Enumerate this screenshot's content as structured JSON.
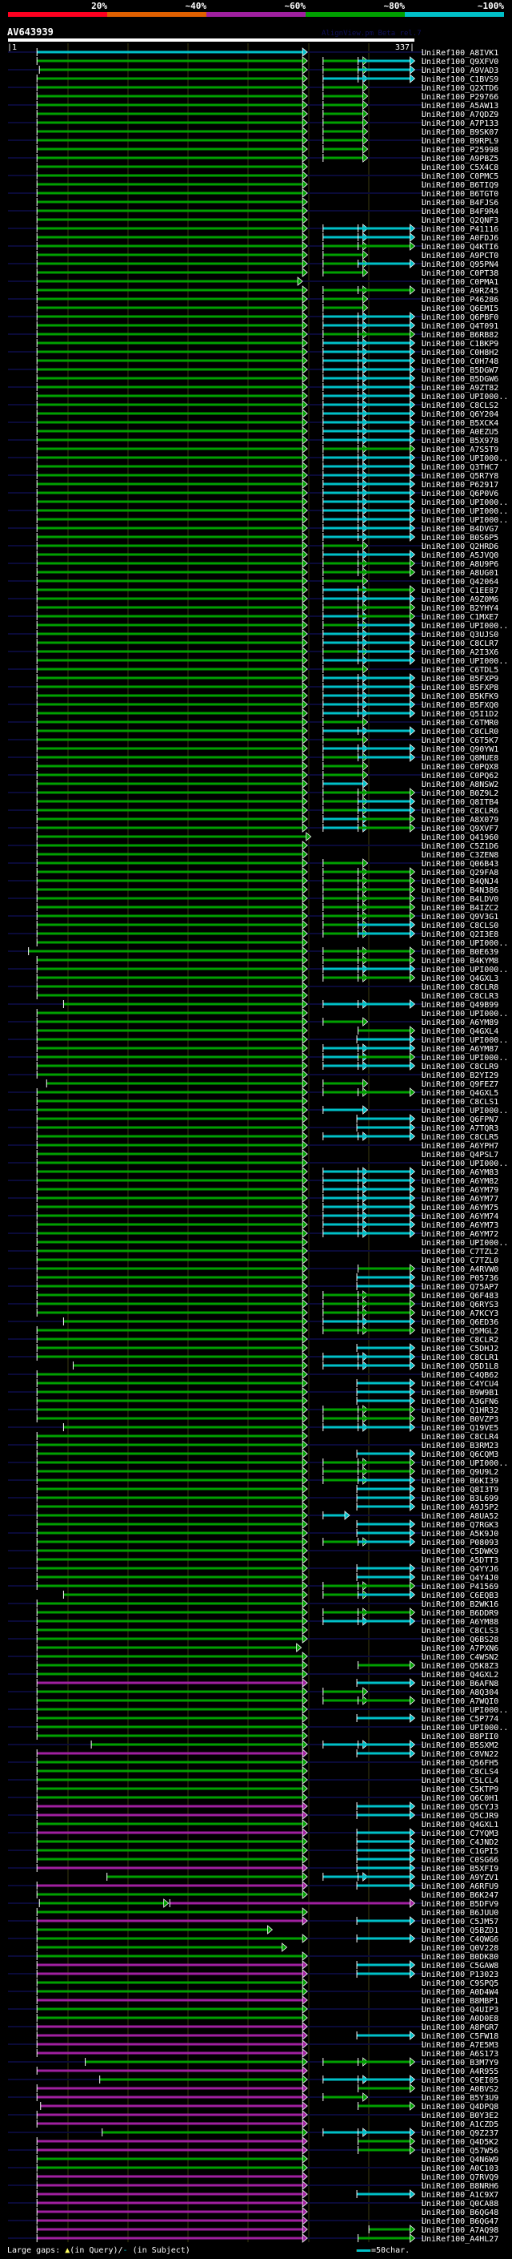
{
  "header": {
    "scale_labels": [
      "20%",
      "~40%",
      "~60%",
      "~80%",
      "~100%"
    ],
    "scale_colors": [
      "#ff0020",
      "#e06000",
      "#a020a0",
      "#00a000",
      "#00c0c8"
    ],
    "query_name": "AV643939",
    "app_name": "AlignView.pm Beta rel.7",
    "query_start": "|1",
    "query_end": "337|"
  },
  "query_length": 337,
  "colors": {
    "g": "#00a000",
    "c": "#00c0c8",
    "m": "#a020a0",
    "subject_line": "#0a0a38",
    "grid": "#3a3a10"
  },
  "main_default": [
    25,
    245
  ],
  "patterns": {
    "A": [
      [
        262,
        295,
        "g"
      ]
    ],
    "B": [
      [
        262,
        295,
        "c"
      ],
      [
        291,
        334,
        "c"
      ]
    ],
    "C": [],
    "D": [
      [
        262,
        295,
        "g"
      ],
      [
        291,
        334,
        "g"
      ]
    ],
    "E": [
      [
        262,
        295,
        "c"
      ],
      [
        291,
        334,
        "g"
      ]
    ],
    "F": [
      [
        262,
        295,
        "g"
      ],
      [
        291,
        334,
        "c"
      ]
    ],
    "G": [
      [
        262,
        295,
        "c"
      ]
    ],
    "H": [
      [
        291,
        334,
        "g"
      ]
    ],
    "I": [
      [
        290,
        334,
        "c"
      ]
    ],
    "J": [
      [
        262,
        280,
        "c"
      ]
    ],
    "K": [
      [
        300,
        334,
        "g"
      ]
    ],
    "X": [
      [
        27,
        130,
        "g"
      ],
      [
        135,
        334,
        "m"
      ]
    ]
  },
  "label_prefix": "UniRef100_",
  "hits": [
    [
      "A8IVK1",
      "c",
      "C"
    ],
    [
      "Q9XFV0",
      "g",
      "F"
    ],
    [
      "A9VAD3",
      "g",
      "F",
      27
    ],
    [
      "C1BVS9",
      "g",
      "B"
    ],
    [
      "Q2XTD6",
      "g",
      "A"
    ],
    [
      "P29766",
      "g",
      "A"
    ],
    [
      "A5AW13",
      "g",
      "A"
    ],
    [
      "A7QDZ9",
      "g",
      "A"
    ],
    [
      "A7P133",
      "g",
      "A"
    ],
    [
      "B9SK07",
      "g",
      "A"
    ],
    [
      "B9RPL9",
      "g",
      "A"
    ],
    [
      "P25998",
      "g",
      "A"
    ],
    [
      "A9PBZ5",
      "g",
      "A"
    ],
    [
      "C5X4C8",
      "g",
      "C"
    ],
    [
      "C0PMC5",
      "g",
      "C"
    ],
    [
      "B6TIQ9",
      "g",
      "C"
    ],
    [
      "B6TGT0",
      "g",
      "C"
    ],
    [
      "B4FJS6",
      "g",
      "C"
    ],
    [
      "B4F9R4",
      "g",
      "C"
    ],
    [
      "Q2QNF3",
      "g",
      "C"
    ],
    [
      "P41116",
      "g",
      "B"
    ],
    [
      "A0FDJ6",
      "g",
      "B"
    ],
    [
      "Q4KTI6",
      "g",
      "D"
    ],
    [
      "A9PCT0",
      "g",
      "A"
    ],
    [
      "Q95PN4",
      "g",
      "F"
    ],
    [
      "C0PT38",
      "g",
      "A"
    ],
    [
      "C0PMA1",
      "g",
      "C",
      null,
      241
    ],
    [
      "A9RZ45",
      "g",
      "D"
    ],
    [
      "P46286",
      "g",
      "A"
    ],
    [
      "Q6EMI5",
      "g",
      "A"
    ],
    [
      "Q6PBF0",
      "g",
      "B"
    ],
    [
      "Q4T091",
      "g",
      "B"
    ],
    [
      "B6RB82",
      "g",
      "D"
    ],
    [
      "C1BKP9",
      "g",
      "B"
    ],
    [
      "C0H8H2",
      "g",
      "B"
    ],
    [
      "C0H748",
      "g",
      "B"
    ],
    [
      "B5DGW7",
      "g",
      "B"
    ],
    [
      "B5DGW6",
      "g",
      "B"
    ],
    [
      "A9ZT82",
      "g",
      "B"
    ],
    [
      "UPI000..",
      "g",
      "B"
    ],
    [
      "C8CLS2",
      "g",
      "B"
    ],
    [
      "Q6Y204",
      "g",
      "B"
    ],
    [
      "B5XCK4",
      "g",
      "B"
    ],
    [
      "A0EZU5",
      "g",
      "B"
    ],
    [
      "B5X978",
      "g",
      "B"
    ],
    [
      "A7S5T9",
      "g",
      "D"
    ],
    [
      "UPI000..",
      "g",
      "B"
    ],
    [
      "Q3THC7",
      "g",
      "B"
    ],
    [
      "Q5R7Y8",
      "g",
      "B"
    ],
    [
      "P62917",
      "g",
      "B"
    ],
    [
      "Q6P0V6",
      "g",
      "B"
    ],
    [
      "UPI000..",
      "g",
      "B"
    ],
    [
      "UPI000..",
      "g",
      "B"
    ],
    [
      "UPI000..",
      "g",
      "B"
    ],
    [
      "B4DVG7",
      "g",
      "B"
    ],
    [
      "B0S6P5",
      "g",
      "B"
    ],
    [
      "Q2HRD6",
      "g",
      "A"
    ],
    [
      "A5JVQ0",
      "g",
      "B"
    ],
    [
      "A8U9P6",
      "g",
      "D"
    ],
    [
      "A8UG01",
      "g",
      "D"
    ],
    [
      "Q42064",
      "g",
      "A"
    ],
    [
      "C1EE87",
      "g",
      "E"
    ],
    [
      "A9Z0M6",
      "g",
      "B"
    ],
    [
      "B2YHY4",
      "g",
      "D"
    ],
    [
      "C1MXE7",
      "g",
      "E"
    ],
    [
      "UPI000..",
      "g",
      "F"
    ],
    [
      "Q3UJS0",
      "g",
      "B"
    ],
    [
      "C8CLR7",
      "g",
      "B"
    ],
    [
      "A2I3X6",
      "g",
      "F"
    ],
    [
      "UPI000..",
      "g",
      "B"
    ],
    [
      "C6TDL5",
      "g",
      "A"
    ],
    [
      "B5FXP9",
      "g",
      "B"
    ],
    [
      "B5FXP8",
      "g",
      "B"
    ],
    [
      "B5KFK9",
      "g",
      "B"
    ],
    [
      "B5FXQ0",
      "g",
      "B"
    ],
    [
      "Q5I1D2",
      "g",
      "B"
    ],
    [
      "C6TMR0",
      "g",
      "A"
    ],
    [
      "C8CLR0",
      "g",
      "B"
    ],
    [
      "C6T5K7",
      "g",
      "A"
    ],
    [
      "Q90YW1",
      "g",
      "B"
    ],
    [
      "Q8MUE8",
      "g",
      "F"
    ],
    [
      "C0PQX8",
      "g",
      "A"
    ],
    [
      "C0PQ62",
      "g",
      "A"
    ],
    [
      "A8NSW2",
      "g",
      "G"
    ],
    [
      "B0Z9L2",
      "g",
      "D"
    ],
    [
      "Q8ITB4",
      "g",
      "F"
    ],
    [
      "C8CLR6",
      "g",
      "F"
    ],
    [
      "A8X079",
      "g",
      "E"
    ],
    [
      "Q9XVF7",
      "g",
      "E"
    ],
    [
      "Q41960",
      "g",
      "C",
      null,
      248
    ],
    [
      "C5Z1D6",
      "g",
      "C"
    ],
    [
      "C3ZEN8",
      "g",
      "C"
    ],
    [
      "Q06B43",
      "g",
      "A"
    ],
    [
      "Q29FA8",
      "g",
      "D"
    ],
    [
      "B4QNJ4",
      "g",
      "D"
    ],
    [
      "B4N386",
      "g",
      "D"
    ],
    [
      "B4LDV0",
      "g",
      "D"
    ],
    [
      "B4IZC2",
      "g",
      "D"
    ],
    [
      "Q9V3G1",
      "g",
      "D"
    ],
    [
      "C8CLS0",
      "g",
      "F"
    ],
    [
      "Q2I3E8",
      "g",
      "F"
    ],
    [
      "UPI000..",
      "g",
      "C"
    ],
    [
      "B0E639",
      "g",
      "D",
      18
    ],
    [
      "B4KYM8",
      "g",
      "D"
    ],
    [
      "UPI000..",
      "g",
      "B"
    ],
    [
      "Q4GXL3",
      "g",
      "D"
    ],
    [
      "C8CLR8",
      "g",
      "C"
    ],
    [
      "C8CLR3",
      "g",
      "C"
    ],
    [
      "Q49B99",
      "g",
      "B",
      47
    ],
    [
      "UPI000..",
      "g",
      "C"
    ],
    [
      "A6YM89",
      "g",
      "A"
    ],
    [
      "Q4GXL4",
      "g",
      "H"
    ],
    [
      "UPI000..",
      "g",
      "I"
    ],
    [
      "A6YM87",
      "g",
      "B"
    ],
    [
      "UPI000..",
      "g",
      "E"
    ],
    [
      "C8CLR9",
      "g",
      "B"
    ],
    [
      "B2YI29",
      "g",
      "C"
    ],
    [
      "Q9FEZ7",
      "g",
      "A",
      33
    ],
    [
      "Q4GXL5",
      "g",
      "D"
    ],
    [
      "C8CLS1",
      "g",
      "C"
    ],
    [
      "UPI000..",
      "g",
      "G"
    ],
    [
      "Q6FPN7",
      "g",
      "I"
    ],
    [
      "A7TQR3",
      "g",
      "I"
    ],
    [
      "C8CLR5",
      "g",
      "B"
    ],
    [
      "A6YPH7",
      "g",
      "C"
    ],
    [
      "Q4PSL7",
      "g",
      "C"
    ],
    [
      "UPI000..",
      "g",
      "C"
    ],
    [
      "A6YM83",
      "g",
      "B"
    ],
    [
      "A6YM82",
      "g",
      "B"
    ],
    [
      "A6YM79",
      "g",
      "B"
    ],
    [
      "A6YM77",
      "g",
      "B"
    ],
    [
      "A6YM75",
      "g",
      "B"
    ],
    [
      "A6YM74",
      "g",
      "B"
    ],
    [
      "A6YM73",
      "g",
      "B"
    ],
    [
      "A6YM72",
      "g",
      "B"
    ],
    [
      "UPI000..",
      "g",
      "C"
    ],
    [
      "C7TZL2",
      "g",
      "C"
    ],
    [
      "C7TZL0",
      "g",
      "C"
    ],
    [
      "A4RVW0",
      "g",
      "H"
    ],
    [
      "P05736",
      "g",
      "I"
    ],
    [
      "Q75AP7",
      "g",
      "I"
    ],
    [
      "Q6F483",
      "g",
      "D"
    ],
    [
      "Q6RYS3",
      "g",
      "D"
    ],
    [
      "A7KCY3",
      "g",
      "D"
    ],
    [
      "Q6ED36",
      "g",
      "B",
      47
    ],
    [
      "Q5MGL2",
      "g",
      "D"
    ],
    [
      "C8CLR2",
      "g",
      "C"
    ],
    [
      "C5DHJ2",
      "g",
      "I"
    ],
    [
      "C8CLR1",
      "g",
      "B"
    ],
    [
      "Q5D1L8",
      "g",
      "B",
      55
    ],
    [
      "C4QB62",
      "g",
      "C"
    ],
    [
      "C4YCU4",
      "g",
      "I"
    ],
    [
      "B9W9B1",
      "g",
      "I"
    ],
    [
      "A3GFN6",
      "g",
      "I"
    ],
    [
      "Q1HR32",
      "g",
      "D"
    ],
    [
      "B0VZP3",
      "g",
      "D"
    ],
    [
      "Q19VE5",
      "g",
      "B",
      47
    ],
    [
      "C8CLR4",
      "g",
      "C"
    ],
    [
      "B3RM23",
      "g",
      "C"
    ],
    [
      "Q6CQM3",
      "g",
      "I"
    ],
    [
      "UPI000..",
      "g",
      "D"
    ],
    [
      "Q9U9L2",
      "g",
      "D"
    ],
    [
      "B6KI39",
      "g",
      "F"
    ],
    [
      "Q8I3T9",
      "g",
      "I"
    ],
    [
      "B3L699",
      "g",
      "I"
    ],
    [
      "A9J5P2",
      "g",
      "I"
    ],
    [
      "A8UA52",
      "g",
      "J"
    ],
    [
      "Q7RGK3",
      "g",
      "I"
    ],
    [
      "A5K9J0",
      "g",
      "I"
    ],
    [
      "P08093",
      "g",
      "F"
    ],
    [
      "C5DWK9",
      "g",
      "C"
    ],
    [
      "A5DTT3",
      "g",
      "C"
    ],
    [
      "Q4YYJ6",
      "g",
      "I"
    ],
    [
      "Q4Y4J0",
      "g",
      "I"
    ],
    [
      "P41569",
      "g",
      "D"
    ],
    [
      "C6EQB3",
      "g",
      "F",
      47
    ],
    [
      "B2WK16",
      "g",
      "C"
    ],
    [
      "B6DDR9",
      "g",
      "D"
    ],
    [
      "A6YM88",
      "g",
      "B"
    ],
    [
      "C8CLS3",
      "g",
      "C"
    ],
    [
      "Q6BS28",
      "g",
      "C"
    ],
    [
      "A7PXN6",
      "g",
      "C",
      null,
      240
    ],
    [
      "C4WSN2",
      "g",
      "C"
    ],
    [
      "Q5K8Z3",
      "g",
      "H"
    ],
    [
      "Q4GXL2",
      "g",
      "C"
    ],
    [
      "B6AFN8",
      "m",
      "I"
    ],
    [
      "A8Q304",
      "g",
      "A"
    ],
    [
      "A7WQI0",
      "g",
      "D"
    ],
    [
      "UPI000..",
      "g",
      "C"
    ],
    [
      "C5P774",
      "g",
      "I"
    ],
    [
      "UPI000..",
      "g",
      "C"
    ],
    [
      "B8PII0",
      "g",
      "C"
    ],
    [
      "B5SXM2",
      "g",
      "B",
      70
    ],
    [
      "C8VN22",
      "m",
      "I"
    ],
    [
      "Q56FH5",
      "g",
      "C"
    ],
    [
      "C8CLS4",
      "g",
      "C"
    ],
    [
      "C5LCL4",
      "g",
      "C"
    ],
    [
      "C5KTP9",
      "g",
      "C"
    ],
    [
      "Q6C0H1",
      "g",
      "C"
    ],
    [
      "Q5CYJ3",
      "m",
      "I"
    ],
    [
      "Q5CJR9",
      "m",
      "I"
    ],
    [
      "Q4GXL1",
      "g",
      "C"
    ],
    [
      "C7YQM3",
      "m",
      "I"
    ],
    [
      "C4JND2",
      "g",
      "I"
    ],
    [
      "C1GPI5",
      "g",
      "I"
    ],
    [
      "C0SG66",
      "g",
      "I"
    ],
    [
      "B5XFI9",
      "m",
      "I"
    ],
    [
      "A9YZV1",
      "g",
      "B",
      83
    ],
    [
      "A6RFU9",
      "m",
      "I"
    ],
    [
      "B6K247",
      "g",
      "C"
    ],
    [
      "B5DFV9",
      "x",
      "X"
    ],
    [
      "B6JUU0",
      "g",
      "C"
    ],
    [
      "C5JM57",
      "m",
      "I"
    ],
    [
      "Q5BZD1",
      "g",
      "C",
      null,
      216
    ],
    [
      "C4QWG6",
      "g",
      "I"
    ],
    [
      "Q0V228",
      "g",
      "C",
      null,
      228
    ],
    [
      "B0DK80",
      "g",
      "C"
    ],
    [
      "C5GAW8",
      "m",
      "I"
    ],
    [
      "P13023",
      "m",
      "I"
    ],
    [
      "C9SPQ5",
      "g",
      "C"
    ],
    [
      "A0D4W4",
      "g",
      "C"
    ],
    [
      "B8MBP1",
      "m",
      "C"
    ],
    [
      "Q4UIP3",
      "g",
      "C"
    ],
    [
      "A0D0E8",
      "g",
      "C"
    ],
    [
      "A8PGR7",
      "m",
      "C"
    ],
    [
      "C5FW18",
      "m",
      "I"
    ],
    [
      "A7E5M3",
      "m",
      "C"
    ],
    [
      "A6S173",
      "m",
      "C"
    ],
    [
      "B3M7Y9",
      "g",
      "D",
      65
    ],
    [
      "A4R955",
      "m",
      "C"
    ],
    [
      "C9EI05",
      "g",
      "B",
      77
    ],
    [
      "A0BVS2",
      "m",
      "H"
    ],
    [
      "B5Y3U9",
      "m",
      "A"
    ],
    [
      "Q4DPQ8",
      "m",
      "H",
      28
    ],
    [
      "B0Y3E2",
      "m",
      "C"
    ],
    [
      "A1CZD5",
      "m",
      "C"
    ],
    [
      "Q9Z237",
      "g",
      "B",
      79
    ],
    [
      "Q4D5K2",
      "m",
      "H"
    ],
    [
      "Q57W56",
      "m",
      "H"
    ],
    [
      "Q4N6W9",
      "g",
      "C"
    ],
    [
      "A0C103",
      "g",
      "C"
    ],
    [
      "Q7RVQ9",
      "m",
      "C"
    ],
    [
      "B8NRH6",
      "m",
      "C"
    ],
    [
      "A1C9X7",
      "m",
      "I"
    ],
    [
      "Q0CA88",
      "m",
      "C"
    ],
    [
      "B6QG48",
      "m",
      "C"
    ],
    [
      "B6QG47",
      "m",
      "C"
    ],
    [
      "A7AQ98",
      "m",
      "K"
    ],
    [
      "A4HL27",
      "m",
      "H"
    ]
  ],
  "footer": {
    "gaps_label": "Large gaps:",
    "query_gap_icon": "▲",
    "query_gap": "(in Query)/",
    "subject_gap_icon": "-",
    "subject_gap": " (in Subject)",
    "scale_label": "=50char."
  }
}
